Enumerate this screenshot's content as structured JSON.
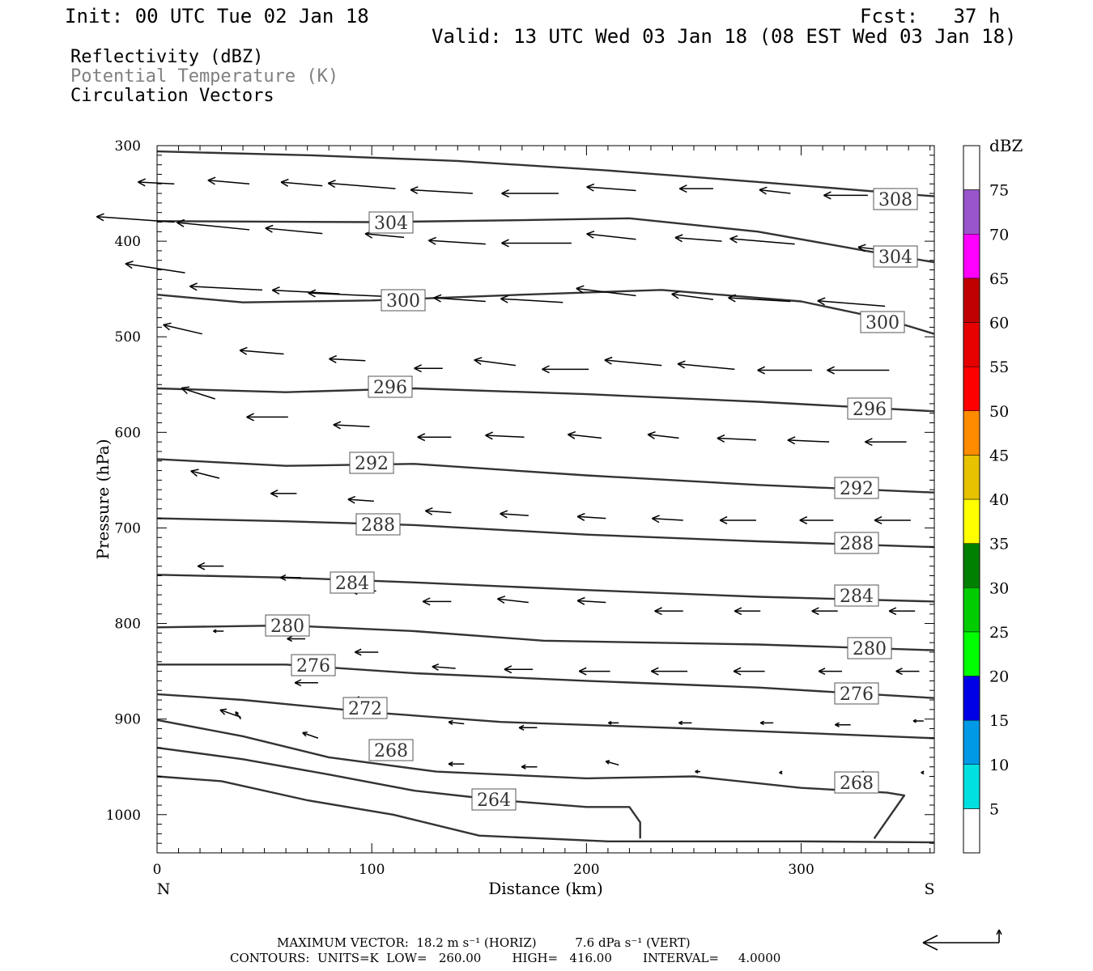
{
  "header": {
    "init": "Init: 00 UTC Tue 02 Jan 18",
    "fcst": "Fcst:   37 h",
    "valid": "Valid: 13 UTC Wed 03 Jan 18 (08 EST Wed 03 Jan 18)"
  },
  "legend": {
    "fields": [
      "Reflectivity (dBZ)",
      "Potential Temperature (K)",
      "Circulation Vectors"
    ],
    "colors": [
      "#000000",
      "#808080",
      "#000000"
    ]
  },
  "colorbar": {
    "unit": "dBZ",
    "levels": [
      5,
      10,
      15,
      20,
      25,
      30,
      35,
      40,
      45,
      50,
      55,
      60,
      65,
      70,
      75
    ],
    "colors": [
      "#00e0e0",
      "#0099e6",
      "#0000e6",
      "#00ff00",
      "#00cc00",
      "#008000",
      "#ffff00",
      "#e6c200",
      "#ff8c00",
      "#ff0000",
      "#e60000",
      "#c00000",
      "#ff00ff",
      "#9955cc"
    ]
  },
  "footer": {
    "max_vector": "MAXIMUM VECTOR:  18.2 m s⁻¹ (HORIZ)          7.6 dPa s⁻¹ (VERT)",
    "contours": "CONTOURS:  UNITS=K  LOW=   260.00        HIGH=   416.00        INTERVAL=     4.0000"
  },
  "chart_data": {
    "type": "line",
    "title": "",
    "xlabel": "Distance (km)",
    "ylabel": "Pressure (hPa)",
    "xlim": [
      0,
      362
    ],
    "ylim": [
      1040,
      300
    ],
    "x_ticks": [
      0,
      100,
      200,
      300
    ],
    "y_ticks": [
      300,
      400,
      500,
      600,
      700,
      800,
      900,
      1000
    ],
    "x_end_labels": {
      "left": "N",
      "right": "S"
    },
    "contour_labels": [
      "308",
      "304",
      "304",
      "300",
      "300",
      "296",
      "296",
      "292",
      "292",
      "288",
      "288",
      "284",
      "284",
      "280",
      "280",
      "276",
      "276",
      "272",
      "268",
      "268",
      "264"
    ],
    "series": [
      {
        "level": 308,
        "x": [
          0,
          70,
          140,
          210,
          280,
          362
        ],
        "y": [
          306,
          310,
          316,
          326,
          338,
          353
        ]
      },
      {
        "level": 304,
        "x": [
          0,
          100,
          170,
          220,
          280,
          330,
          362
        ],
        "y": [
          379,
          380,
          378,
          376,
          390,
          410,
          422
        ]
      },
      {
        "level": 300,
        "x": [
          0,
          40,
          100,
          170,
          235,
          300,
          340,
          362
        ],
        "y": [
          456,
          464,
          462,
          456,
          451,
          463,
          482,
          497
        ]
      },
      {
        "level": 296,
        "x": [
          0,
          60,
          120,
          200,
          280,
          362
        ],
        "y": [
          554,
          558,
          554,
          560,
          568,
          578
        ]
      },
      {
        "level": 292,
        "x": [
          0,
          60,
          120,
          200,
          280,
          362
        ],
        "y": [
          628,
          635,
          633,
          645,
          655,
          663
        ]
      },
      {
        "level": 288,
        "x": [
          0,
          60,
          120,
          200,
          280,
          362
        ],
        "y": [
          690,
          693,
          697,
          707,
          714,
          720
        ]
      },
      {
        "level": 284,
        "x": [
          0,
          60,
          120,
          200,
          280,
          362
        ],
        "y": [
          749,
          752,
          757,
          765,
          772,
          777
        ]
      },
      {
        "level": 280,
        "x": [
          0,
          60,
          120,
          180,
          280,
          362
        ],
        "y": [
          804,
          802,
          808,
          818,
          822,
          828
        ]
      },
      {
        "level": 276,
        "x": [
          0,
          60,
          120,
          200,
          280,
          362
        ],
        "y": [
          843,
          843,
          852,
          860,
          867,
          878
        ]
      },
      {
        "level": 272,
        "x": [
          0,
          40,
          100,
          160,
          250,
          362
        ],
        "y": [
          874,
          880,
          893,
          903,
          910,
          920
        ]
      },
      {
        "level": 268,
        "x": [
          0,
          40,
          80,
          130,
          200,
          250,
          300,
          340,
          348,
          338,
          334
        ],
        "y": [
          901,
          918,
          940,
          955,
          962,
          960,
          972,
          977,
          980,
          1012,
          1025
        ]
      },
      {
        "level": 264,
        "x": [
          0,
          40,
          80,
          120,
          160,
          200,
          220,
          225,
          225
        ],
        "y": [
          930,
          942,
          958,
          975,
          985,
          992,
          992,
          1008,
          1025
        ]
      },
      {
        "level": 260,
        "x": [
          0,
          30,
          70,
          110,
          150,
          210,
          300,
          362
        ],
        "y": [
          960,
          965,
          985,
          1000,
          1022,
          1028,
          1028,
          1029
        ]
      }
    ],
    "vectors": [
      [
        5,
        340,
        -14,
        -1
      ],
      [
        40,
        340,
        -16,
        -2
      ],
      [
        74,
        342,
        -16,
        -2
      ],
      [
        108,
        345,
        -26,
        -3
      ],
      [
        144,
        350,
        -24,
        -2
      ],
      [
        184,
        350,
        -22,
        0
      ],
      [
        220,
        347,
        -19,
        -2
      ],
      [
        256,
        345,
        -13,
        0
      ],
      [
        292,
        350,
        -12,
        -2
      ],
      [
        328,
        352,
        -17,
        0
      ],
      [
        5,
        380,
        -30,
        -3
      ],
      [
        40,
        388,
        -28,
        -4
      ],
      [
        74,
        392,
        -22,
        -3
      ],
      [
        112,
        396,
        -15,
        -2
      ],
      [
        150,
        403,
        -22,
        -2
      ],
      [
        190,
        402,
        -27,
        0
      ],
      [
        220,
        398,
        -19,
        -3
      ],
      [
        260,
        400,
        -18,
        -2
      ],
      [
        294,
        403,
        -25,
        -3
      ],
      [
        338,
        410,
        -12,
        -2
      ],
      [
        10,
        433,
        -23,
        -5
      ],
      [
        46,
        451,
        -28,
        -2
      ],
      [
        82,
        455,
        -26,
        -2
      ],
      [
        106,
        458,
        -32,
        -2
      ],
      [
        150,
        463,
        -20,
        -2
      ],
      [
        186,
        464,
        -24,
        -2
      ],
      [
        220,
        457,
        -23,
        -4
      ],
      [
        256,
        461,
        -16,
        -3
      ],
      [
        292,
        463,
        -24,
        -2
      ],
      [
        336,
        468,
        -26,
        -3
      ],
      [
        18,
        497,
        -15,
        -5
      ],
      [
        56,
        518,
        -17,
        -2
      ],
      [
        94,
        525,
        -14,
        -1
      ],
      [
        130,
        533,
        -11,
        0
      ],
      [
        164,
        530,
        -16,
        -3
      ],
      [
        198,
        534,
        -18,
        0
      ],
      [
        232,
        530,
        -22,
        -3
      ],
      [
        266,
        534,
        -22,
        -3
      ],
      [
        302,
        535,
        -21,
        0
      ],
      [
        338,
        535,
        -24,
        0
      ],
      [
        24,
        565,
        -13,
        -6
      ],
      [
        58,
        584,
        -16,
        0
      ],
      [
        96,
        594,
        -14,
        -1
      ],
      [
        134,
        605,
        -13,
        0
      ],
      [
        168,
        605,
        -15,
        -1
      ],
      [
        204,
        606,
        -13,
        -2
      ],
      [
        240,
        606,
        -12,
        -2
      ],
      [
        276,
        608,
        -15,
        -1
      ],
      [
        310,
        610,
        -16,
        -1
      ],
      [
        346,
        610,
        -16,
        0
      ],
      [
        26,
        648,
        -11,
        -4
      ],
      [
        62,
        664,
        -10,
        0
      ],
      [
        98,
        672,
        -10,
        -1
      ],
      [
        134,
        684,
        -10,
        -1
      ],
      [
        170,
        687,
        -11,
        -1
      ],
      [
        206,
        690,
        -11,
        -1
      ],
      [
        242,
        692,
        -12,
        -1
      ],
      [
        276,
        692,
        -14,
        0
      ],
      [
        312,
        692,
        -13,
        0
      ],
      [
        348,
        692,
        -14,
        0
      ],
      [
        28,
        740,
        -10,
        0
      ],
      [
        64,
        752,
        -8,
        0
      ],
      [
        99,
        766,
        -10,
        0
      ],
      [
        134,
        777,
        -11,
        0
      ],
      [
        170,
        778,
        -12,
        -2
      ],
      [
        206,
        778,
        -11,
        -1
      ],
      [
        242,
        787,
        -11,
        0
      ],
      [
        278,
        787,
        -10,
        0
      ],
      [
        314,
        787,
        -10,
        0
      ],
      [
        350,
        787,
        -10,
        0
      ],
      [
        28,
        808,
        -4,
        0
      ],
      [
        66,
        816,
        -7,
        0
      ],
      [
        100,
        830,
        -9,
        0
      ],
      [
        136,
        847,
        -9,
        -1
      ],
      [
        172,
        848,
        -11,
        0
      ],
      [
        208,
        850,
        -12,
        0
      ],
      [
        244,
        850,
        -14,
        0
      ],
      [
        280,
        850,
        -12,
        0
      ],
      [
        316,
        850,
        -9,
        0
      ],
      [
        352,
        850,
        -9,
        0
      ],
      [
        36,
        898,
        -8,
        -4
      ],
      [
        72,
        862,
        -9,
        0
      ],
      [
        100,
        880,
        -10,
        0
      ],
      [
        140,
        905,
        -6,
        -1
      ],
      [
        174,
        909,
        -7,
        0
      ],
      [
        212,
        904,
        -4,
        0
      ],
      [
        246,
        904,
        -5,
        0
      ],
      [
        284,
        904,
        -5,
        0
      ],
      [
        320,
        906,
        -6,
        0
      ],
      [
        354,
        902,
        -4,
        0
      ],
      [
        36,
        900,
        -2,
        -4
      ],
      [
        72,
        920,
        -6,
        -3
      ],
      [
        100,
        880,
        -3,
        2
      ],
      [
        140,
        947,
        -6,
        0
      ],
      [
        174,
        950,
        -6,
        0
      ],
      [
        212,
        948,
        -5,
        -2
      ],
      [
        250,
        955,
        -2,
        0
      ],
      [
        288,
        956,
        -1,
        0
      ],
      [
        326,
        956,
        -1,
        0
      ],
      [
        354,
        956,
        -1,
        0
      ]
    ]
  }
}
